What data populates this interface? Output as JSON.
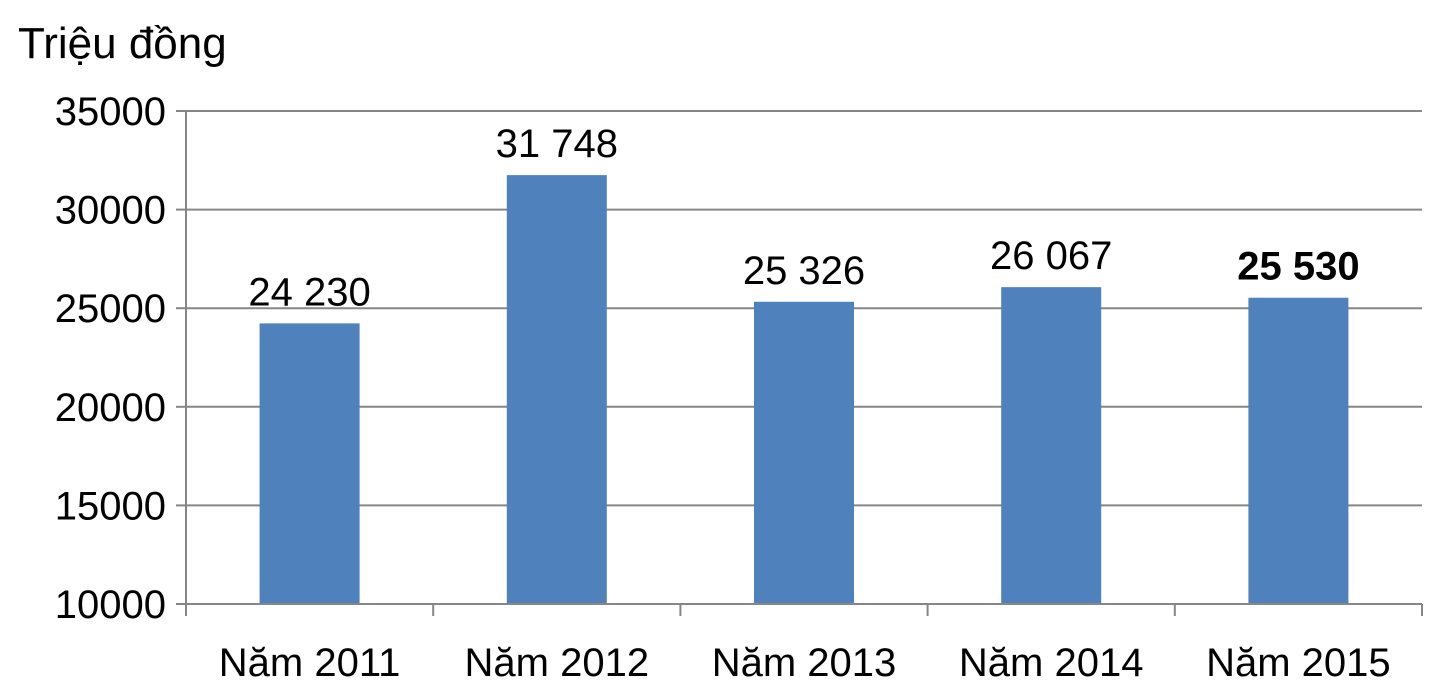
{
  "chart_data": {
    "type": "bar",
    "ylabel": "Triệu đồng",
    "categories": [
      "Năm 2011",
      "Năm 2012",
      "Năm 2013",
      "Năm 2014",
      "Năm 2015"
    ],
    "values": [
      24230,
      31748,
      25326,
      26067,
      25530
    ],
    "data_labels": [
      "24 230",
      "31 748",
      "25 326",
      "26 067",
      "25 530"
    ],
    "bold_label_index": 4,
    "ylim": [
      10000,
      35000
    ],
    "yticks": [
      10000,
      15000,
      20000,
      25000,
      30000,
      35000
    ],
    "ytick_labels": [
      "10000",
      "15000",
      "20000",
      "25000",
      "30000",
      "35000"
    ],
    "grid": true,
    "bar_color": "#4F81BD",
    "grid_color": "#868686"
  }
}
